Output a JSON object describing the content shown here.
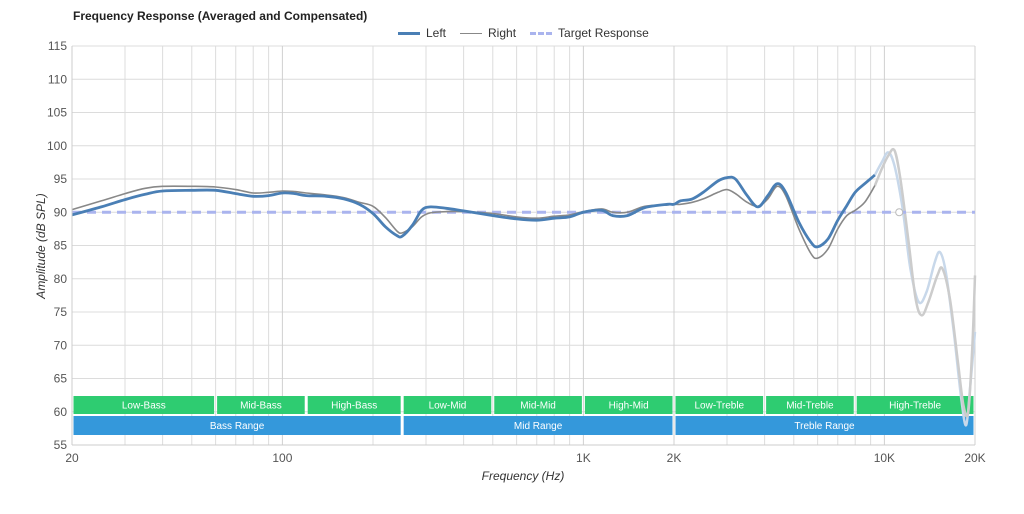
{
  "chart_data": {
    "type": "line",
    "title": "Frequency Response (Averaged and Compensated)",
    "xlabel": "Frequency (Hz)",
    "ylabel": "Amplitude (dB SPL)",
    "xscale": "log",
    "xlim": [
      20,
      20000
    ],
    "ylim": [
      55,
      115
    ],
    "grid": true,
    "legend_position": "top-center",
    "x_ticks": [
      {
        "value": 20,
        "label": "20"
      },
      {
        "value": 100,
        "label": "100"
      },
      {
        "value": 1000,
        "label": "1K"
      },
      {
        "value": 2000,
        "label": "2K"
      },
      {
        "value": 10000,
        "label": "10K"
      },
      {
        "value": 20000,
        "label": "20K"
      }
    ],
    "x_minor_gridlines": [
      30,
      40,
      50,
      60,
      70,
      80,
      90,
      200,
      300,
      400,
      500,
      600,
      700,
      800,
      900,
      3000,
      4000,
      5000,
      6000,
      7000,
      8000,
      9000
    ],
    "y_ticks": [
      55,
      60,
      65,
      70,
      75,
      80,
      85,
      90,
      95,
      100,
      105,
      110,
      115
    ],
    "series": [
      {
        "name": "Left",
        "color": "#4a7fb5",
        "style": "solid-thick",
        "points": [
          [
            20,
            89.6
          ],
          [
            25,
            90.8
          ],
          [
            30,
            91.9
          ],
          [
            35,
            92.7
          ],
          [
            40,
            93.2
          ],
          [
            50,
            93.3
          ],
          [
            60,
            93.3
          ],
          [
            70,
            92.8
          ],
          [
            80,
            92.4
          ],
          [
            90,
            92.5
          ],
          [
            100,
            92.9
          ],
          [
            110,
            92.8
          ],
          [
            120,
            92.5
          ],
          [
            140,
            92.4
          ],
          [
            160,
            92.0
          ],
          [
            180,
            91.2
          ],
          [
            200,
            89.8
          ],
          [
            220,
            87.8
          ],
          [
            240,
            86.5
          ],
          [
            250,
            86.4
          ],
          [
            270,
            88.0
          ],
          [
            290,
            90.3
          ],
          [
            310,
            90.8
          ],
          [
            350,
            90.6
          ],
          [
            400,
            90.2
          ],
          [
            500,
            89.5
          ],
          [
            600,
            89.0
          ],
          [
            700,
            88.8
          ],
          [
            800,
            89.1
          ],
          [
            900,
            89.3
          ],
          [
            1000,
            90.0
          ],
          [
            1150,
            90.3
          ],
          [
            1250,
            89.5
          ],
          [
            1400,
            89.5
          ],
          [
            1600,
            90.7
          ],
          [
            1900,
            91.2
          ],
          [
            2000,
            91.2
          ],
          [
            2100,
            91.7
          ],
          [
            2300,
            92.0
          ],
          [
            2500,
            93.0
          ],
          [
            2800,
            94.7
          ],
          [
            3000,
            95.2
          ],
          [
            3200,
            95.0
          ],
          [
            3500,
            92.5
          ],
          [
            3800,
            90.8
          ],
          [
            4100,
            92.5
          ],
          [
            4400,
            94.3
          ],
          [
            4700,
            93.0
          ],
          [
            5200,
            88.5
          ],
          [
            5700,
            85.5
          ],
          [
            6000,
            84.8
          ],
          [
            6500,
            86.0
          ],
          [
            7000,
            88.8
          ],
          [
            7500,
            91.0
          ],
          [
            8000,
            93.0
          ],
          [
            8600,
            94.3
          ],
          [
            9300,
            95.6
          ]
        ]
      },
      {
        "name": "Right",
        "color": "#888888",
        "style": "solid-thin",
        "points": [
          [
            20,
            90.4
          ],
          [
            25,
            91.7
          ],
          [
            30,
            92.8
          ],
          [
            35,
            93.6
          ],
          [
            40,
            93.9
          ],
          [
            50,
            93.9
          ],
          [
            60,
            93.8
          ],
          [
            70,
            93.4
          ],
          [
            80,
            92.9
          ],
          [
            90,
            93.0
          ],
          [
            100,
            93.2
          ],
          [
            110,
            93.1
          ],
          [
            120,
            92.9
          ],
          [
            140,
            92.6
          ],
          [
            160,
            92.2
          ],
          [
            180,
            91.5
          ],
          [
            200,
            90.9
          ],
          [
            220,
            89.2
          ],
          [
            240,
            87.2
          ],
          [
            250,
            86.9
          ],
          [
            270,
            87.8
          ],
          [
            290,
            89.3
          ],
          [
            310,
            89.9
          ],
          [
            350,
            90.1
          ],
          [
            400,
            90.1
          ],
          [
            500,
            89.8
          ],
          [
            600,
            89.3
          ],
          [
            700,
            89.1
          ],
          [
            800,
            89.4
          ],
          [
            900,
            89.6
          ],
          [
            1000,
            90.1
          ],
          [
            1150,
            90.5
          ],
          [
            1250,
            90.0
          ],
          [
            1400,
            90.0
          ],
          [
            1600,
            90.9
          ],
          [
            1900,
            91.1
          ],
          [
            2000,
            91.2
          ],
          [
            2100,
            91.2
          ],
          [
            2300,
            91.5
          ],
          [
            2500,
            92.0
          ],
          [
            2800,
            93.0
          ],
          [
            3000,
            93.4
          ],
          [
            3200,
            92.8
          ],
          [
            3500,
            91.5
          ],
          [
            3800,
            90.9
          ],
          [
            4100,
            92.0
          ],
          [
            4400,
            93.9
          ],
          [
            4700,
            92.5
          ],
          [
            5200,
            87.5
          ],
          [
            5700,
            83.8
          ],
          [
            6000,
            83.1
          ],
          [
            6500,
            84.5
          ],
          [
            7000,
            87.5
          ],
          [
            7500,
            89.5
          ],
          [
            8000,
            90.3
          ],
          [
            8600,
            91.5
          ],
          [
            9300,
            94.0
          ]
        ]
      },
      {
        "name": "Target Response",
        "color": "#aab4ee",
        "style": "dashed",
        "points": [
          [
            20,
            90.0
          ],
          [
            20000,
            90.0
          ]
        ]
      }
    ],
    "faded_series": [
      {
        "name": "Left (above 10K, faded)",
        "color": "#c8d8ea",
        "points": [
          [
            9300,
            95.6
          ],
          [
            9800,
            97.5
          ],
          [
            10300,
            99.0
          ],
          [
            10800,
            97.0
          ],
          [
            11500,
            90.5
          ],
          [
            12200,
            81.5
          ],
          [
            13000,
            76.5
          ],
          [
            13800,
            78.0
          ],
          [
            14700,
            82.5
          ],
          [
            15300,
            84.0
          ],
          [
            16000,
            81.0
          ],
          [
            17000,
            72.0
          ],
          [
            18000,
            62.0
          ],
          [
            18700,
            58.0
          ],
          [
            19300,
            64.0
          ],
          [
            20000,
            72.0
          ]
        ]
      },
      {
        "name": "Right (above 10K, faded)",
        "color": "#cccccc",
        "points": [
          [
            9300,
            94.0
          ],
          [
            9800,
            96.5
          ],
          [
            10300,
            98.5
          ],
          [
            10800,
            99.3
          ],
          [
            11300,
            95.0
          ],
          [
            12000,
            86.0
          ],
          [
            12700,
            77.0
          ],
          [
            13300,
            74.5
          ],
          [
            14000,
            76.5
          ],
          [
            15000,
            80.5
          ],
          [
            15600,
            81.5
          ],
          [
            16500,
            77.0
          ],
          [
            17500,
            68.0
          ],
          [
            18300,
            61.0
          ],
          [
            19000,
            60.0
          ],
          [
            19600,
            70.0
          ],
          [
            20000,
            80.5
          ]
        ]
      }
    ],
    "bands": {
      "row1": [
        {
          "label": "Low-Bass",
          "from": 20,
          "to": 60
        },
        {
          "label": "Mid-Bass",
          "from": 60,
          "to": 120
        },
        {
          "label": "High-Bass",
          "from": 120,
          "to": 250
        },
        {
          "label": "Low-Mid",
          "from": 250,
          "to": 500
        },
        {
          "label": "Mid-Mid",
          "from": 500,
          "to": 1000
        },
        {
          "label": "High-Mid",
          "from": 1000,
          "to": 2000
        },
        {
          "label": "Low-Treble",
          "from": 2000,
          "to": 4000
        },
        {
          "label": "Mid-Treble",
          "from": 4000,
          "to": 8000
        },
        {
          "label": "High-Treble",
          "from": 8000,
          "to": 20000
        }
      ],
      "row2": [
        {
          "label": "Bass Range",
          "from": 20,
          "to": 250
        },
        {
          "label": "Mid Range",
          "from": 250,
          "to": 2000
        },
        {
          "label": "Treble Range",
          "from": 2000,
          "to": 20000
        }
      ],
      "row1_color": "#2ecc71",
      "row2_color": "#3498db"
    }
  }
}
